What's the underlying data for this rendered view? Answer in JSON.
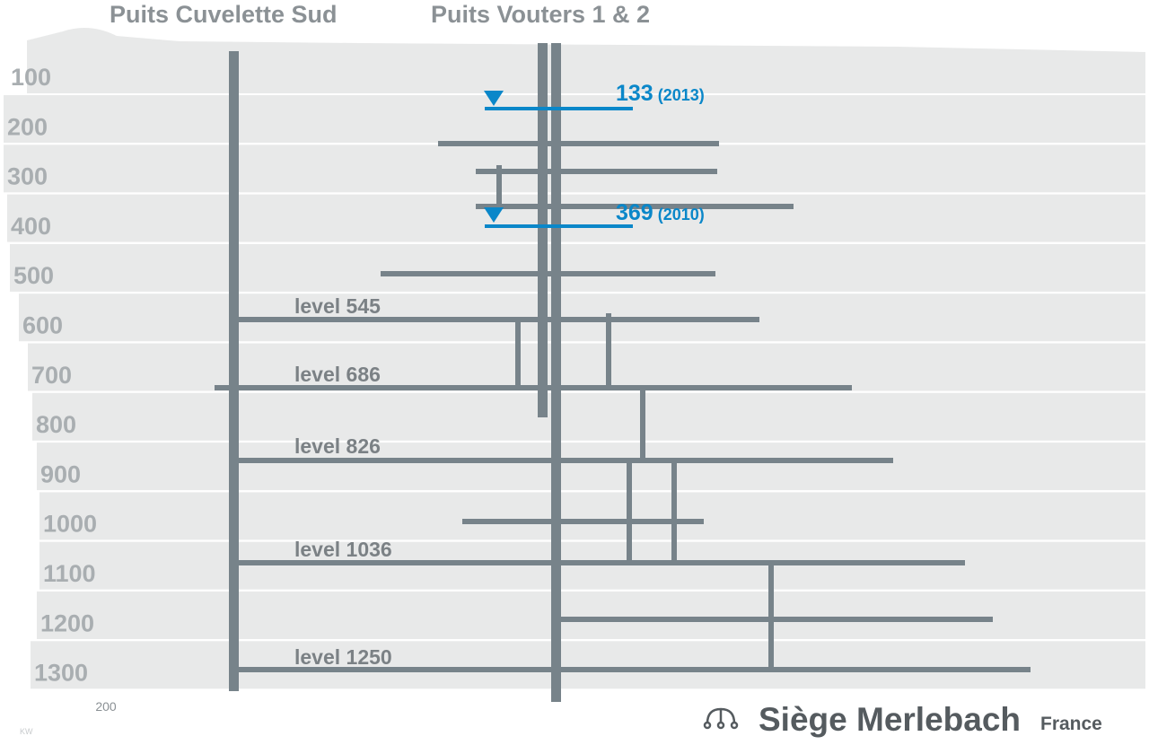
{
  "header": {
    "shafts": [
      "Puits Cuvelette Sud",
      "Puits Vouters 1 & 2"
    ]
  },
  "depth_labels": [
    100,
    200,
    300,
    400,
    500,
    600,
    700,
    800,
    900,
    1000,
    1100,
    1200,
    1300
  ],
  "levels": [
    "level 545",
    "level 686",
    "level 826",
    "level 1036",
    "level 1250"
  ],
  "water_levels": [
    {
      "depth": "133",
      "year": "(2013)"
    },
    {
      "depth": "369",
      "year": "(2010)"
    }
  ],
  "scale_bar": "200",
  "footer": {
    "title": "Siège Merlebach",
    "country": "France",
    "credit": "KW"
  }
}
